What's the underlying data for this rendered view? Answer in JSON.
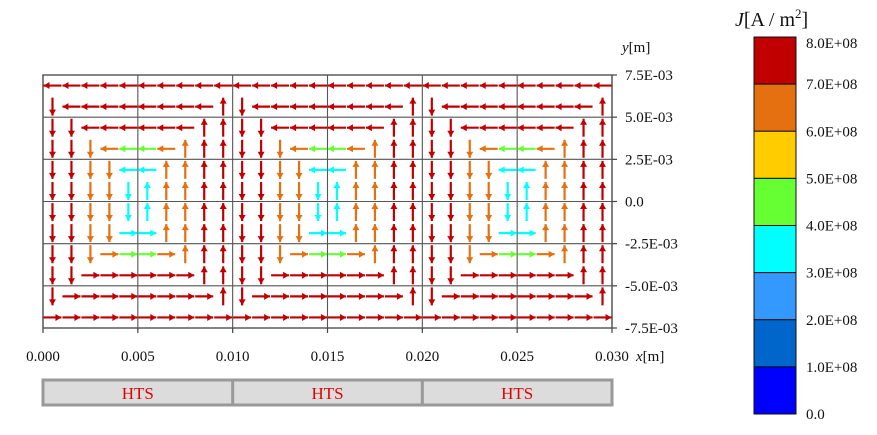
{
  "chart_data": {
    "type": "vector-field",
    "xlabel_var": "x",
    "xlabel_unit": "[m]",
    "ylabel_var": "y",
    "ylabel_unit": "[m]",
    "x_ticks": [
      "0.000",
      "0.005",
      "0.010",
      "0.015",
      "0.020",
      "0.025",
      "0.030"
    ],
    "x_tick_values": [
      0.0,
      0.005,
      0.01,
      0.015,
      0.02,
      0.025,
      0.03
    ],
    "y_ticks": [
      "7.5E-03",
      "5.0E-03",
      "2.5E-03",
      "0.0",
      "-2.5E-03",
      "-5.0E-03",
      "-7.5E-03"
    ],
    "y_tick_values": [
      0.0075,
      0.005,
      0.0025,
      0.0,
      -0.0025,
      -0.005,
      -0.0075
    ],
    "xlim": [
      0.0,
      0.03
    ],
    "ylim": [
      -0.0075,
      0.0075
    ],
    "strips": [
      {
        "label": "HTS",
        "x_range": [
          0.0,
          0.01
        ]
      },
      {
        "label": "HTS",
        "x_range": [
          0.01,
          0.02
        ]
      },
      {
        "label": "HTS",
        "x_range": [
          0.02,
          0.03
        ]
      }
    ],
    "description_of_field": "three current-vortex loops, counter-clockwise circulation in each strip; magnitude high near edges, low near x≈0.005/0.015/0.025",
    "colorbar": {
      "title_var": "J",
      "title_unit": "[A / m",
      "title_exp": "2",
      "title_close": "]",
      "ticks": [
        "8.0E+08",
        "7.0E+08",
        "6.0E+08",
        "5.0E+08",
        "4.0E+08",
        "3.0E+08",
        "2.0E+08",
        "1.0E+08",
        "0.0"
      ],
      "values": [
        800000000.0,
        700000000.0,
        600000000.0,
        500000000.0,
        400000000.0,
        300000000.0,
        200000000.0,
        100000000.0,
        0.0
      ],
      "colors": [
        "#c00000",
        "#e57010",
        "#ffcc00",
        "#66ff33",
        "#00ffff",
        "#3399ff",
        "#0066cc",
        "#0000ff"
      ]
    }
  }
}
